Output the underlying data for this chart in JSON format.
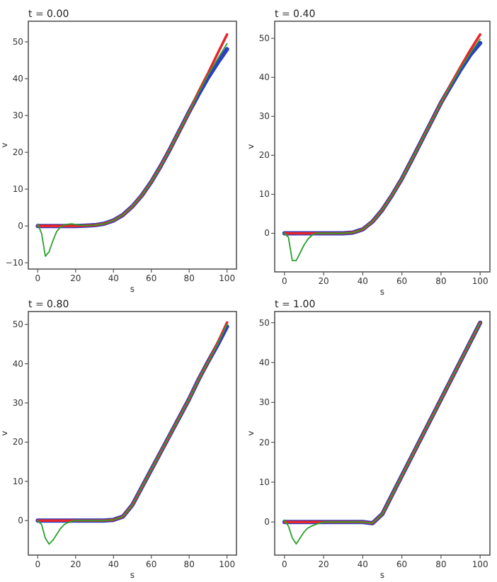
{
  "chart_data": [
    {
      "type": "line",
      "title": "t = 0.00",
      "xlabel": "s",
      "ylabel": "v",
      "x": [
        0,
        2,
        4,
        6,
        8,
        10,
        12,
        14,
        16,
        18,
        20,
        25,
        30,
        35,
        40,
        45,
        50,
        55,
        60,
        65,
        70,
        75,
        80,
        85,
        90,
        95,
        100
      ],
      "xlim": [
        -5,
        105
      ],
      "xticks": [
        0,
        20,
        40,
        60,
        80,
        100
      ],
      "ylim": [
        -11.7,
        55.6
      ],
      "yticks": [
        {
          "value": -10,
          "label": "−10"
        },
        0,
        10,
        20,
        30,
        40,
        50
      ],
      "grid": false,
      "series": [
        {
          "color": "#e8262b",
          "values": [
            0,
            0,
            0,
            0,
            0,
            0,
            0,
            0,
            0,
            0,
            0,
            0.1,
            0.2,
            0.6,
            1.5,
            3,
            5.3,
            8.3,
            12,
            16.3,
            21,
            26,
            31,
            36.5,
            41.5,
            46.8,
            52
          ]
        },
        {
          "color": "#2a3fc4",
          "values": [
            0,
            0,
            0,
            0,
            0,
            0,
            0,
            0,
            0,
            0,
            0,
            0.1,
            0.2,
            0.6,
            1.5,
            3,
            5.3,
            8.3,
            12,
            16.3,
            21,
            26,
            31,
            35.8,
            40.3,
            44.3,
            48
          ]
        },
        {
          "color": "#2ca02c",
          "values": [
            0.5,
            -2,
            -8.2,
            -7,
            -4,
            -1.5,
            -0.3,
            0.3,
            0.5,
            0.6,
            0.4,
            0.1,
            0.2,
            0.6,
            1.5,
            3,
            5.3,
            8.3,
            12,
            16.3,
            21,
            26,
            31,
            36.2,
            41,
            45.3,
            49.5
          ]
        }
      ]
    },
    {
      "type": "line",
      "title": "t = 0.40",
      "xlabel": "s",
      "ylabel": "v",
      "x": [
        0,
        2,
        4,
        6,
        8,
        10,
        12,
        14,
        16,
        18,
        20,
        25,
        30,
        35,
        40,
        45,
        50,
        55,
        60,
        65,
        70,
        75,
        80,
        85,
        90,
        95,
        100
      ],
      "xlim": [
        -5,
        105
      ],
      "xticks": [
        0,
        20,
        40,
        60,
        80,
        100
      ],
      "ylim": [
        -9.9,
        54.4
      ],
      "yticks": [
        0,
        10,
        20,
        30,
        40,
        50
      ],
      "grid": false,
      "series": [
        {
          "color": "#e8262b",
          "values": [
            0,
            0,
            0,
            0,
            0,
            0,
            0,
            0,
            0,
            0,
            0,
            0,
            0,
            0.2,
            1,
            3,
            6,
            9.8,
            14,
            18.8,
            23.7,
            28.6,
            33.5,
            38.2,
            42.7,
            47,
            51
          ]
        },
        {
          "color": "#2a3fc4",
          "values": [
            0,
            0,
            0,
            0,
            0,
            0,
            0,
            0,
            0,
            0,
            0,
            0,
            0,
            0.2,
            1,
            3,
            6,
            9.8,
            14,
            18.8,
            23.7,
            28.6,
            33.5,
            37.8,
            42,
            45.8,
            48.8
          ]
        },
        {
          "color": "#2ca02c",
          "values": [
            0,
            -1,
            -7,
            -7,
            -5,
            -3,
            -1.5,
            -0.5,
            0,
            0,
            0,
            0,
            0,
            0.2,
            1,
            3,
            6,
            9.8,
            14,
            18.8,
            23.7,
            28.6,
            33.5,
            38,
            42.3,
            46.2,
            49.8
          ]
        }
      ]
    },
    {
      "type": "line",
      "title": "t = 0.80",
      "xlabel": "s",
      "ylabel": "v",
      "x": [
        0,
        2,
        4,
        6,
        8,
        10,
        12,
        14,
        16,
        18,
        20,
        25,
        30,
        35,
        40,
        45,
        50,
        55,
        60,
        65,
        70,
        75,
        80,
        85,
        90,
        95,
        100
      ],
      "xlim": [
        -5,
        105
      ],
      "xticks": [
        0,
        20,
        40,
        60,
        80,
        100
      ],
      "ylim": [
        -8.8,
        53.3
      ],
      "yticks": [
        0,
        10,
        20,
        30,
        40,
        50
      ],
      "grid": false,
      "series": [
        {
          "color": "#e8262b",
          "values": [
            0,
            0,
            0,
            0,
            0,
            0,
            0,
            0,
            0,
            0,
            0,
            0,
            0,
            0,
            0.2,
            1,
            4,
            8.5,
            13,
            17.5,
            22,
            26.5,
            31,
            36,
            40.5,
            45.2,
            50.5
          ]
        },
        {
          "color": "#2a3fc4",
          "values": [
            0,
            0,
            0,
            0,
            0,
            0,
            0,
            0,
            0,
            0,
            0,
            0,
            0,
            0,
            0.2,
            1,
            4,
            8.5,
            13,
            17.5,
            22,
            26.5,
            31,
            36,
            40.5,
            44.8,
            49.5
          ]
        },
        {
          "color": "#2ca02c",
          "values": [
            0,
            -1,
            -4.5,
            -6,
            -5,
            -3.5,
            -2,
            -1,
            -0.5,
            -0.2,
            0,
            0,
            0,
            0,
            0.2,
            1,
            4,
            8.5,
            13,
            17.5,
            22,
            26.5,
            31,
            36,
            40.5,
            45,
            50
          ]
        }
      ]
    },
    {
      "type": "line",
      "title": "t = 1.00",
      "xlabel": "s",
      "ylabel": "v",
      "x": [
        0,
        2,
        4,
        6,
        8,
        10,
        12,
        14,
        16,
        18,
        20,
        25,
        30,
        35,
        40,
        45,
        50,
        55,
        60,
        65,
        70,
        75,
        80,
        85,
        90,
        95,
        100
      ],
      "xlim": [
        -5,
        105
      ],
      "xticks": [
        0,
        20,
        40,
        60,
        80,
        100
      ],
      "ylim": [
        -8.3,
        52.8
      ],
      "yticks": [
        0,
        10,
        20,
        30,
        40,
        50
      ],
      "grid": false,
      "series": [
        {
          "color": "#e8262b",
          "values": [
            0,
            0,
            0,
            0,
            0,
            0,
            0,
            0,
            0,
            0,
            0,
            0,
            0,
            0,
            0,
            -0.3,
            2,
            6.8,
            11.6,
            16.4,
            21.2,
            26,
            30.8,
            35.6,
            40.4,
            45.2,
            50
          ]
        },
        {
          "color": "#2a3fc4",
          "values": [
            0,
            0,
            0,
            0,
            0,
            0,
            0,
            0,
            0,
            0,
            0,
            0,
            0,
            0,
            0,
            -0.3,
            2,
            6.8,
            11.6,
            16.4,
            21.2,
            26,
            30.8,
            35.6,
            40.4,
            45.2,
            50
          ]
        },
        {
          "color": "#2ca02c",
          "values": [
            0.5,
            -1,
            -4,
            -5.5,
            -4,
            -2.5,
            -1.5,
            -1,
            -0.6,
            -0.3,
            0,
            0,
            0,
            0,
            0,
            -0.3,
            2,
            6.8,
            11.6,
            16.4,
            21.2,
            26,
            30.8,
            35.6,
            40.4,
            45.2,
            50
          ]
        }
      ]
    }
  ]
}
